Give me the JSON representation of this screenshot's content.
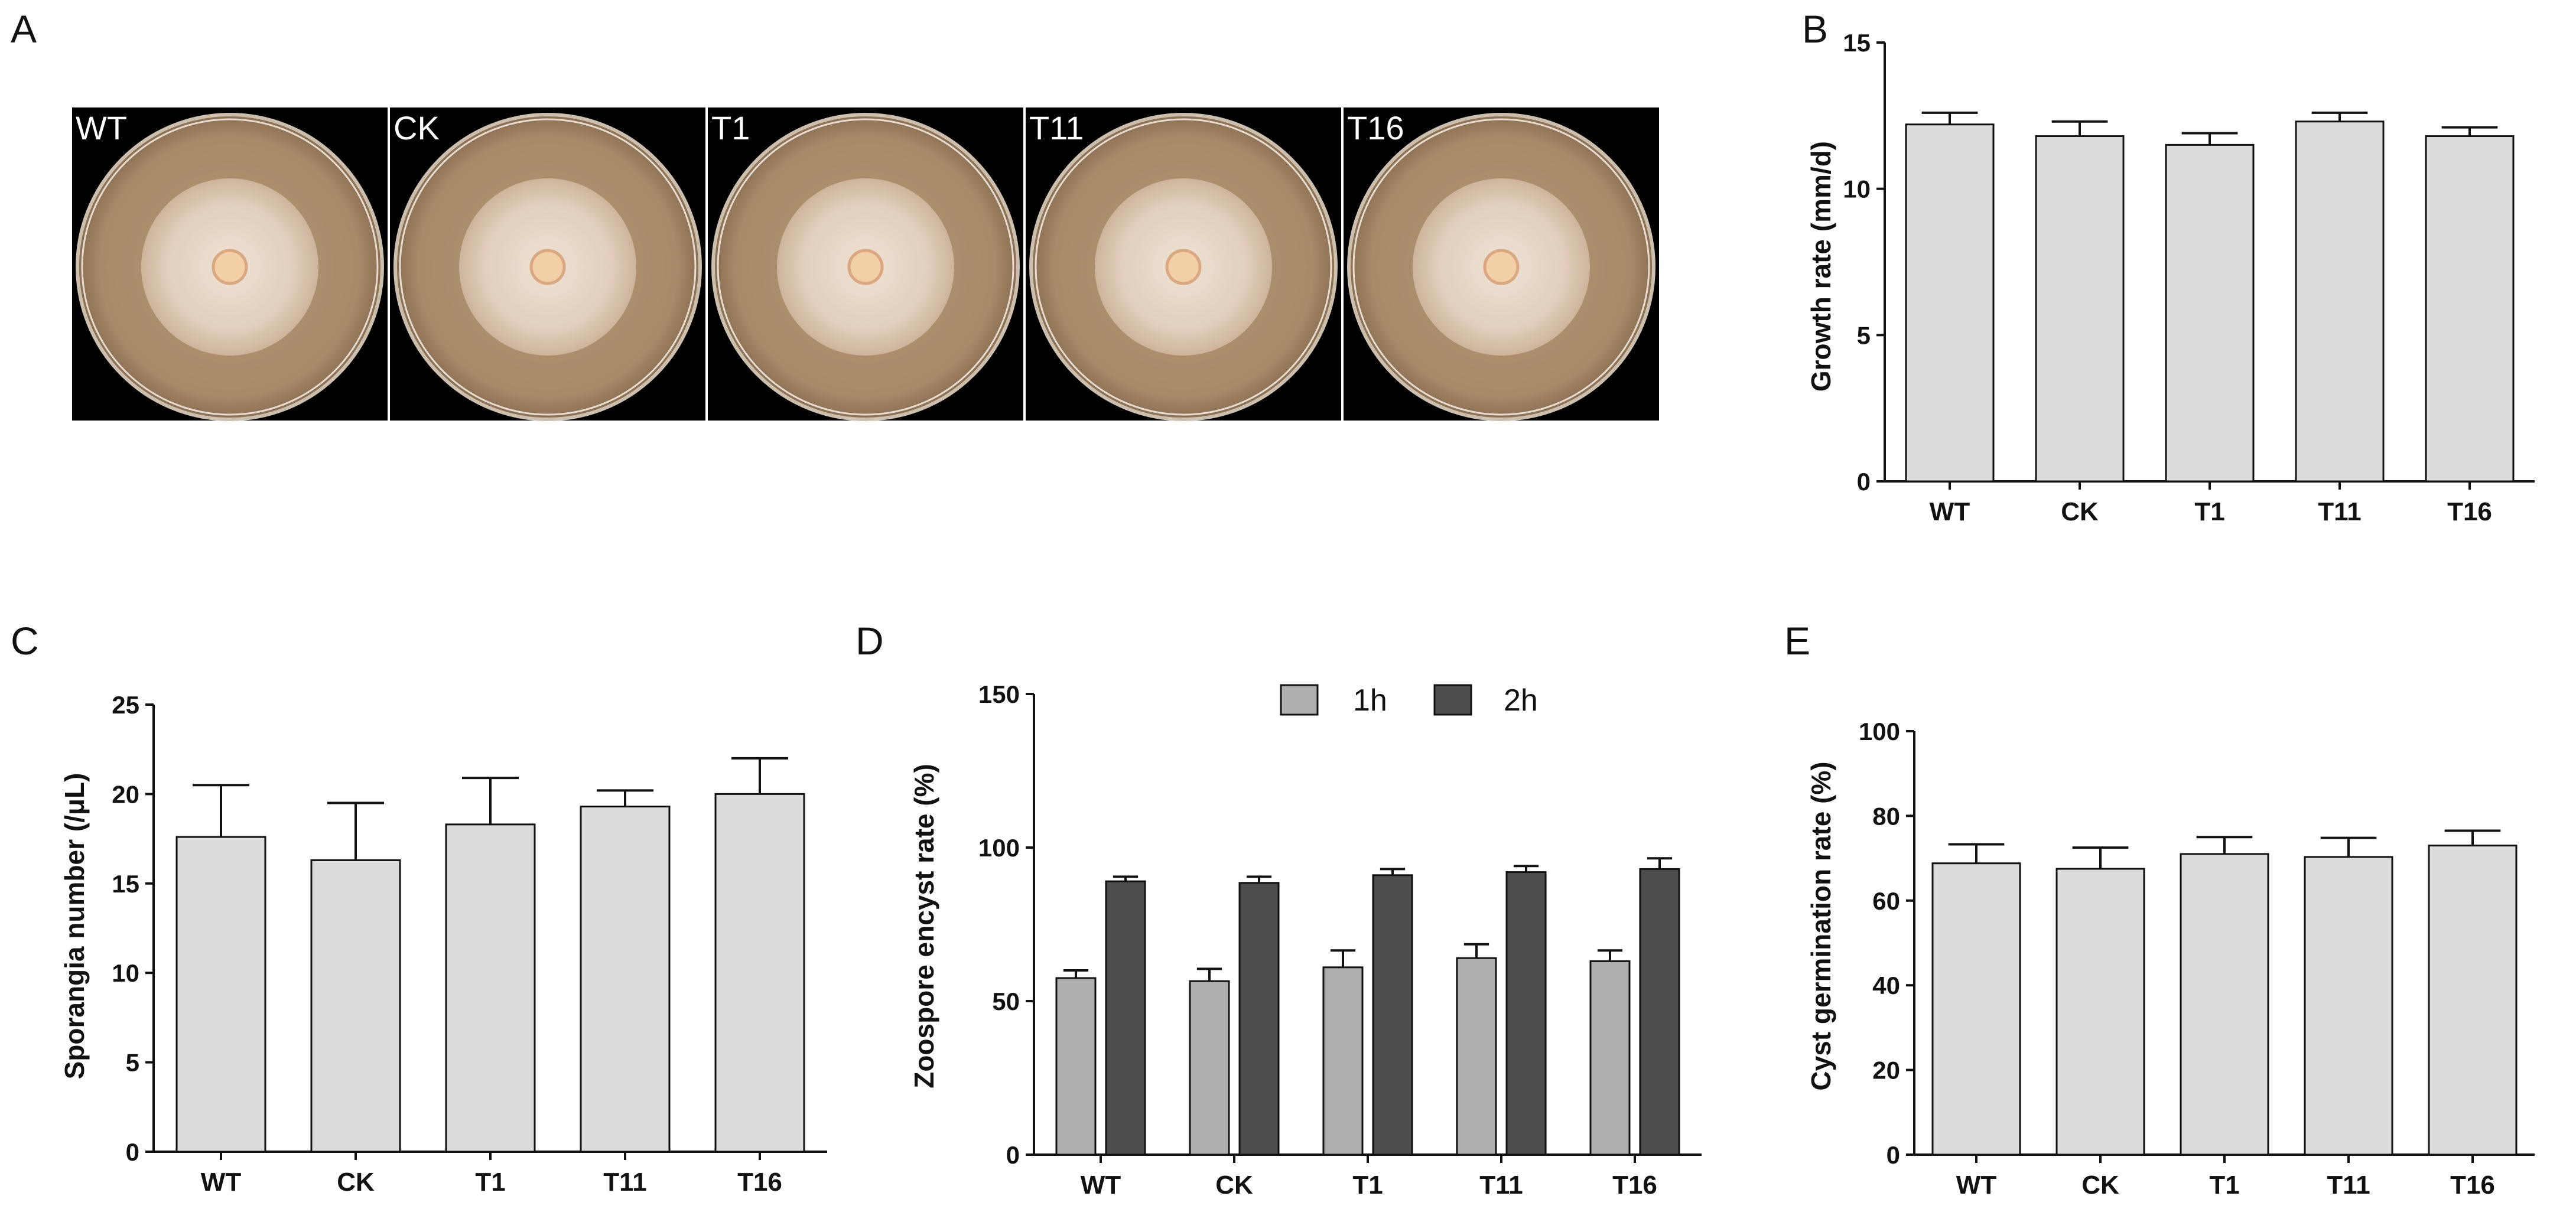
{
  "figure": {
    "panels": {
      "A": {
        "letter": "A",
        "plates": [
          "WT",
          "CK",
          "T1",
          "T11",
          "T16"
        ],
        "colors": {
          "background": "#000000",
          "agar": "#a98a68",
          "colony": "#e8d8c8",
          "inoculum": "#f3cfa8"
        }
      }
    }
  },
  "chart_data": [
    {
      "id": "B",
      "letter": "B",
      "type": "bar",
      "title": "",
      "xlabel": "",
      "ylabel": "Growth rate (mm/d)",
      "ylim": [
        0,
        15
      ],
      "yticks": [
        0,
        5,
        10,
        15
      ],
      "categories": [
        "WT",
        "CK",
        "T1",
        "T11",
        "T16"
      ],
      "series": [
        {
          "name": "",
          "color": "#dcdcdc",
          "values": [
            12.2,
            11.8,
            11.5,
            12.3,
            11.8
          ],
          "errors": [
            0.4,
            0.5,
            0.4,
            0.3,
            0.3
          ]
        }
      ],
      "legend": null
    },
    {
      "id": "C",
      "letter": "C",
      "type": "bar",
      "title": "",
      "xlabel": "",
      "ylabel": "Sporangia number (/μL)",
      "ylim": [
        0,
        25
      ],
      "yticks": [
        0,
        5,
        10,
        15,
        20,
        25
      ],
      "categories": [
        "WT",
        "CK",
        "T1",
        "T11",
        "T16"
      ],
      "series": [
        {
          "name": "",
          "color": "#dcdcdc",
          "values": [
            17.6,
            16.3,
            18.3,
            19.3,
            20.0
          ],
          "errors": [
            2.9,
            3.2,
            2.6,
            0.9,
            2.0
          ]
        }
      ],
      "legend": null
    },
    {
      "id": "D",
      "letter": "D",
      "type": "bar",
      "title": "",
      "xlabel": "",
      "ylabel": "Zoospore encyst rate (%)",
      "ylim": [
        0,
        150
      ],
      "yticks": [
        0,
        50,
        100,
        150
      ],
      "categories": [
        "WT",
        "CK",
        "T1",
        "T11",
        "T16"
      ],
      "series": [
        {
          "name": "1h",
          "color": "#aeaeae",
          "values": [
            57.5,
            56.5,
            61.0,
            64.0,
            63.0
          ],
          "errors": [
            2.5,
            4.0,
            5.5,
            4.5,
            3.5
          ]
        },
        {
          "name": "2h",
          "color": "#4d4d4d",
          "values": [
            89.0,
            88.5,
            91.0,
            92.0,
            93.0
          ],
          "errors": [
            1.5,
            2.0,
            2.0,
            2.0,
            3.5
          ]
        }
      ],
      "legend": "top-center"
    },
    {
      "id": "E",
      "letter": "E",
      "type": "bar",
      "title": "",
      "xlabel": "",
      "ylabel": "Cyst germination rate (%)",
      "ylim": [
        0,
        100
      ],
      "yticks": [
        0,
        20,
        40,
        60,
        80,
        100
      ],
      "categories": [
        "WT",
        "CK",
        "T1",
        "T11",
        "T16"
      ],
      "series": [
        {
          "name": "",
          "color": "#dcdcdc",
          "values": [
            68.8,
            67.5,
            71.0,
            70.3,
            73.0
          ],
          "errors": [
            4.5,
            5.0,
            4.0,
            4.5,
            3.5
          ]
        }
      ],
      "legend": null
    }
  ]
}
